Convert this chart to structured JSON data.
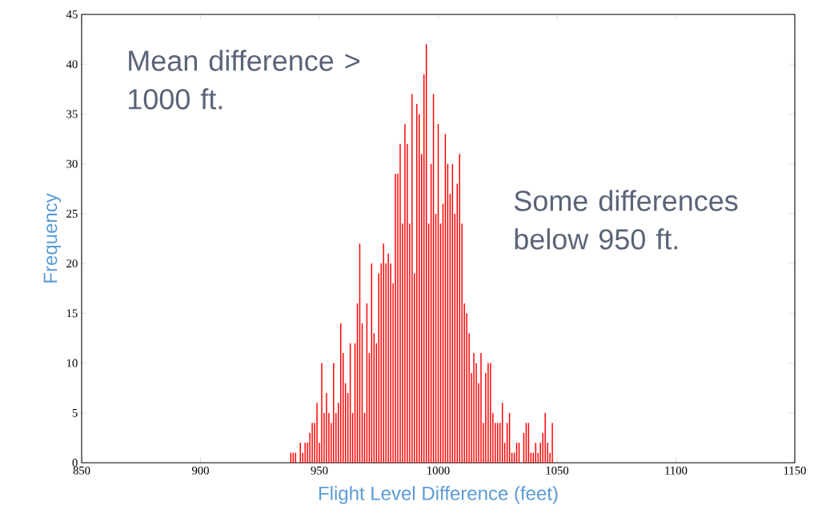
{
  "chart_data": {
    "type": "bar",
    "xlabel": "Flight Level Difference (feet)",
    "ylabel": "Frequency",
    "annotations": [
      "Mean difference > 1000 ft.",
      "Some differences below 950 ft."
    ],
    "x": [
      938,
      939,
      940,
      941,
      942,
      943,
      944,
      945,
      946,
      947,
      948,
      949,
      950,
      951,
      952,
      953,
      954,
      955,
      956,
      957,
      958,
      959,
      960,
      961,
      962,
      963,
      964,
      965,
      966,
      967,
      968,
      969,
      970,
      971,
      972,
      973,
      974,
      975,
      976,
      977,
      978,
      979,
      980,
      981,
      982,
      983,
      984,
      985,
      986,
      987,
      988,
      989,
      990,
      991,
      992,
      993,
      994,
      995,
      996,
      997,
      998,
      999,
      1000,
      1001,
      1002,
      1003,
      1004,
      1005,
      1006,
      1007,
      1008,
      1009,
      1010,
      1011,
      1012,
      1013,
      1014,
      1015,
      1016,
      1017,
      1018,
      1019,
      1020,
      1021,
      1022,
      1023,
      1024,
      1025,
      1026,
      1027,
      1028,
      1029,
      1030,
      1031,
      1032,
      1033,
      1034,
      1035,
      1036,
      1037,
      1038,
      1039,
      1040,
      1041,
      1042,
      1043,
      1044,
      1045,
      1046,
      1047,
      1048
    ],
    "values": [
      1,
      1,
      1,
      0,
      2,
      1,
      2,
      2,
      3,
      4,
      4,
      6,
      2,
      10,
      5,
      7,
      5,
      4,
      10,
      5,
      6,
      14,
      11,
      8,
      7,
      12,
      5,
      12,
      16,
      22,
      14,
      5,
      16,
      11,
      20,
      13,
      12,
      19,
      20,
      22,
      20,
      21,
      20,
      18,
      29,
      29,
      32,
      24,
      34,
      32,
      24,
      37,
      19,
      36,
      35,
      31,
      39,
      42,
      24,
      30,
      37,
      25,
      34,
      24,
      26,
      33,
      30,
      27,
      30,
      25,
      28,
      31,
      24,
      16,
      15,
      13,
      9,
      11,
      10,
      8,
      11,
      4,
      9,
      10,
      10,
      5,
      4,
      4,
      4,
      6,
      2,
      4,
      5,
      1,
      1,
      2,
      2,
      0,
      3,
      4,
      4,
      1,
      1,
      2,
      1,
      2,
      3,
      5,
      2,
      1,
      4
    ],
    "color": "#ff0000",
    "xlim": [
      850,
      1150
    ],
    "ylim": [
      0,
      45
    ],
    "xticks": [
      850,
      900,
      950,
      1000,
      1050,
      1100,
      1150
    ],
    "yticks": [
      0,
      5,
      10,
      15,
      20,
      25,
      30,
      35,
      40,
      45
    ],
    "grid": false
  }
}
